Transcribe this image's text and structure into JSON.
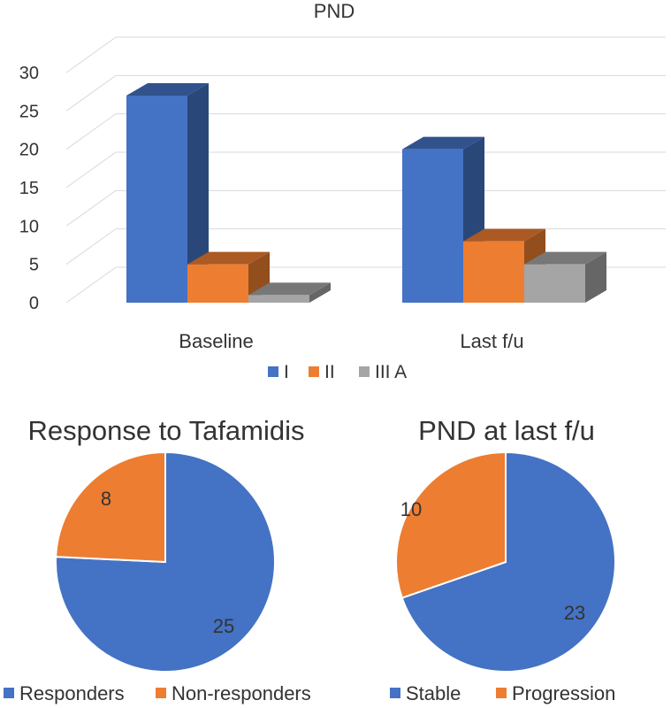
{
  "chart_data": [
    {
      "type": "bar",
      "title": "PND",
      "categories": [
        "Baseline",
        "Last f/u"
      ],
      "series": [
        {
          "name": "I",
          "values": [
            27,
            20
          ],
          "color": "#4472C4"
        },
        {
          "name": "II",
          "values": [
            5,
            8
          ],
          "color": "#ED7D31"
        },
        {
          "name": "III A",
          "values": [
            1,
            5
          ],
          "color": "#A5A5A5"
        }
      ],
      "ylim": [
        0,
        30
      ],
      "yticks": [
        0,
        5,
        10,
        15,
        20,
        25,
        30
      ],
      "grid": true,
      "style": "3d-clustered-column",
      "legend": "bottom"
    },
    {
      "type": "pie",
      "title": "Response to Tafamidis",
      "slices": [
        {
          "label": "Responders",
          "value": 25,
          "color": "#4472C4"
        },
        {
          "label": "Non-responders",
          "value": 8,
          "color": "#ED7D31"
        }
      ],
      "legend": "bottom"
    },
    {
      "type": "pie",
      "title": "PND at last f/u",
      "slices": [
        {
          "label": "Stable",
          "value": 23,
          "color": "#4472C4"
        },
        {
          "label": "Progression",
          "value": 10,
          "color": "#ED7D31"
        }
      ],
      "legend": "bottom"
    }
  ]
}
